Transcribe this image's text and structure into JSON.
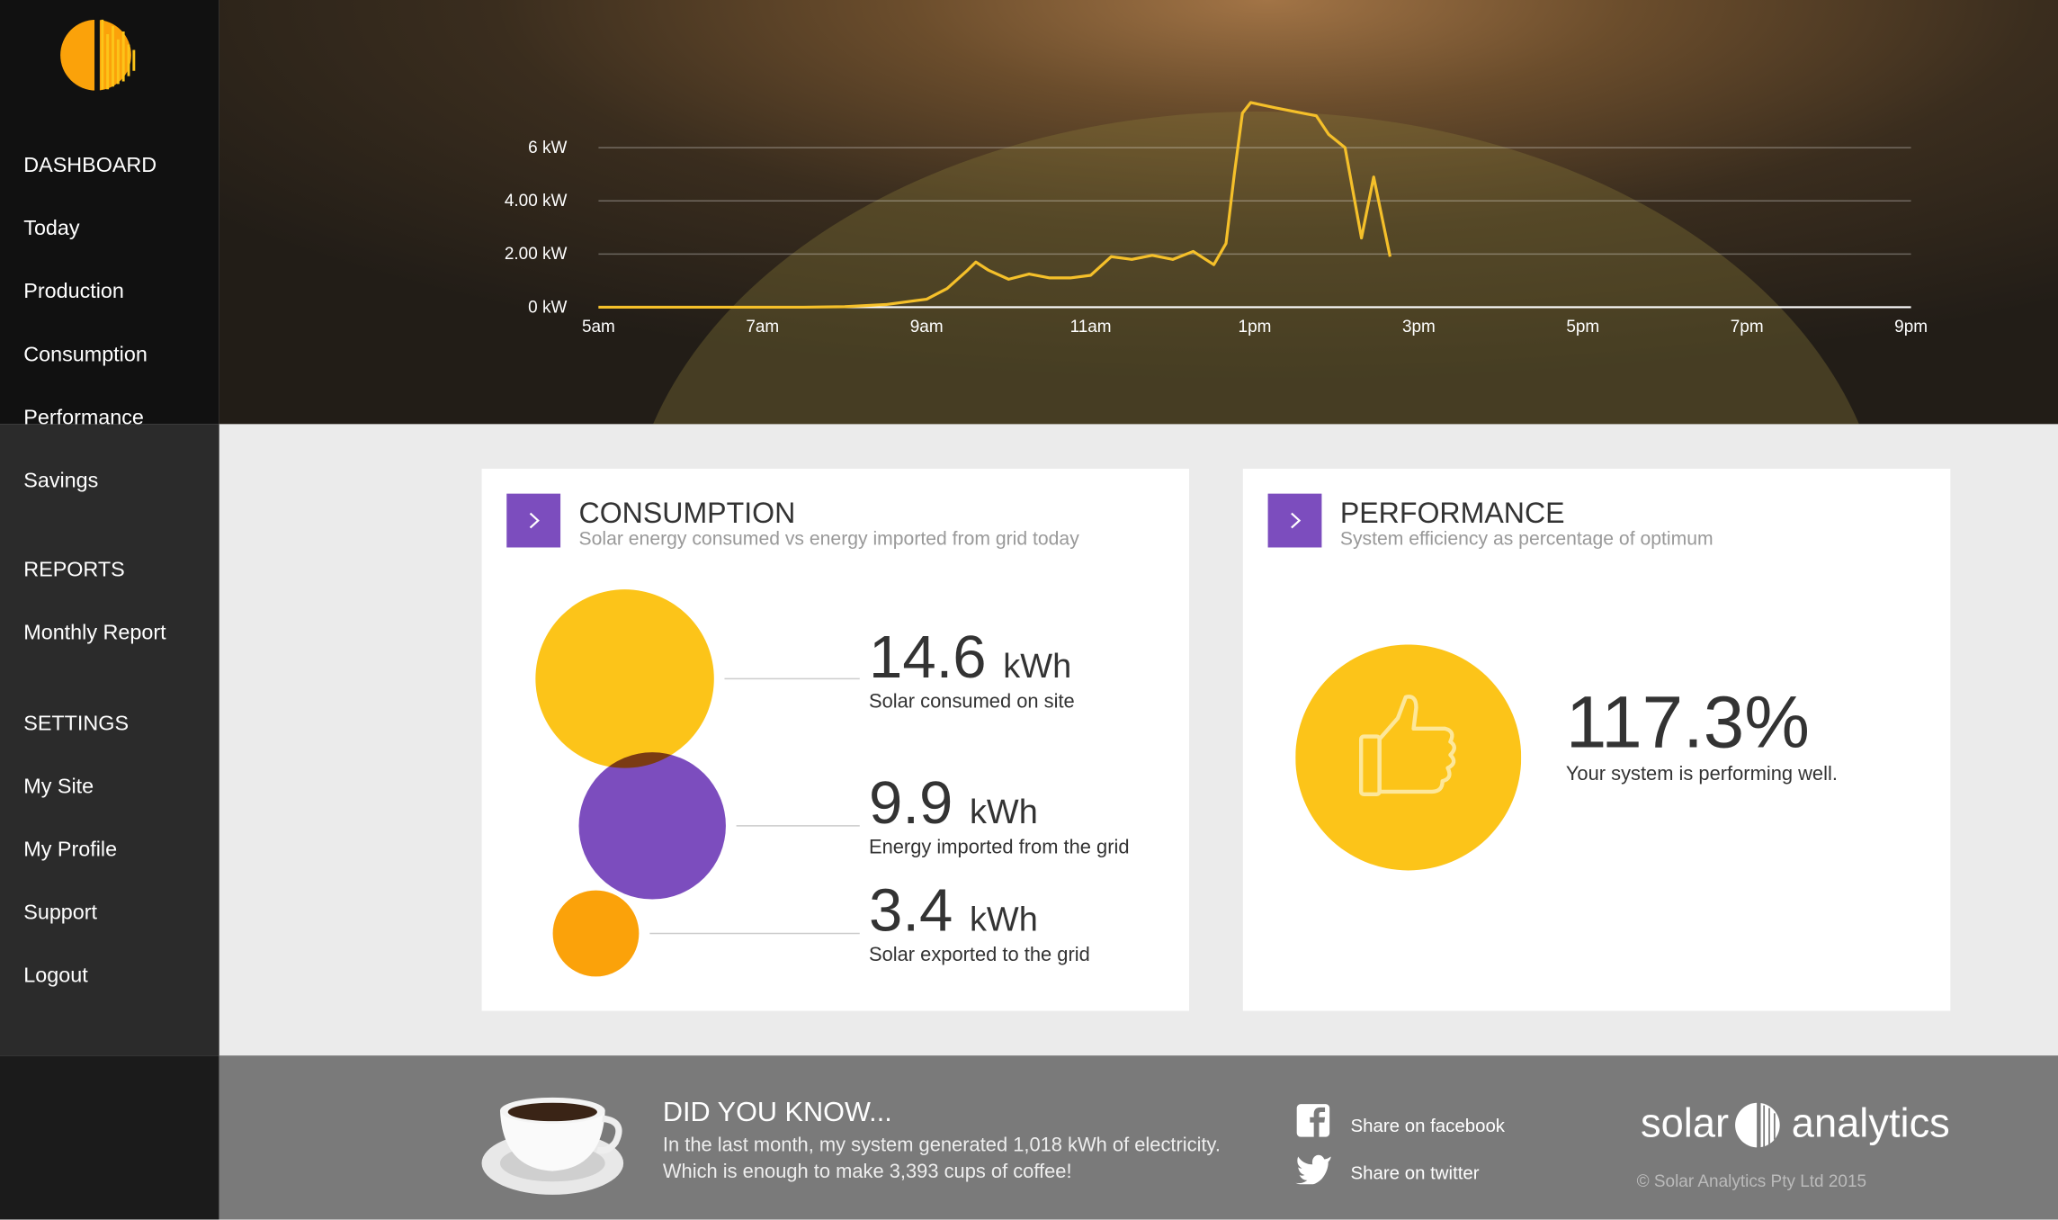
{
  "sidebar": {
    "sections": [
      {
        "heading": "DASHBOARD",
        "items": [
          "Today",
          "Production",
          "Consumption",
          "Performance",
          "Savings"
        ]
      },
      {
        "heading": "REPORTS",
        "items": [
          "Monthly Report"
        ]
      },
      {
        "heading": "SETTINGS",
        "items": [
          "My Site",
          "My Profile",
          "Support",
          "Logout"
        ]
      }
    ]
  },
  "chart_data": {
    "type": "line",
    "color": "#f5c02a",
    "grid": true,
    "x": [
      5,
      7.5,
      8,
      8.5,
      9,
      9.25,
      9.5,
      9.6,
      9.75,
      10,
      10.25,
      10.5,
      10.75,
      11,
      11.25,
      11.5,
      11.75,
      12,
      12.25,
      12.5,
      12.65,
      12.75,
      12.85,
      12.95,
      13.25,
      13.5,
      13.75,
      13.9,
      14.1,
      14.3,
      14.45,
      14.65
    ],
    "values": [
      0,
      0,
      0.02,
      0.1,
      0.3,
      0.7,
      1.4,
      1.7,
      1.4,
      1.05,
      1.25,
      1.1,
      1.1,
      1.2,
      1.9,
      1.8,
      1.95,
      1.8,
      2.1,
      1.6,
      2.4,
      5.0,
      7.3,
      7.7,
      7.5,
      7.35,
      7.2,
      6.5,
      6.0,
      2.6,
      4.9,
      1.9
    ],
    "xlim": [
      5,
      21
    ],
    "xticks": [
      {
        "value": 5,
        "label": "5am"
      },
      {
        "value": 7,
        "label": "7am"
      },
      {
        "value": 9,
        "label": "9am"
      },
      {
        "value": 11,
        "label": "11am"
      },
      {
        "value": 13,
        "label": "1pm"
      },
      {
        "value": 15,
        "label": "3pm"
      },
      {
        "value": 17,
        "label": "5pm"
      },
      {
        "value": 19,
        "label": "7pm"
      },
      {
        "value": 21,
        "label": "9pm"
      }
    ],
    "ylim": [
      0,
      8
    ],
    "yticks": [
      {
        "value": 0,
        "label": "0 kW"
      },
      {
        "value": 2,
        "label": "2.00 kW"
      },
      {
        "value": 4,
        "label": "4.00 kW"
      },
      {
        "value": 6,
        "label": "6 kW"
      }
    ]
  },
  "consumption": {
    "title": "CONSUMPTION",
    "subtitle": "Solar energy consumed vs energy imported from grid today",
    "items": [
      {
        "value": 14.6,
        "unit": "kWh",
        "label": "Solar consumed on site",
        "color": "#fcc419"
      },
      {
        "value": 9.9,
        "unit": "kWh",
        "label": "Energy imported from the grid",
        "color": "#7c4dbe"
      },
      {
        "value": 3.4,
        "unit": "kWh",
        "label": "Solar exported to the grid",
        "color": "#fba20a"
      }
    ]
  },
  "performance": {
    "title": "PERFORMANCE",
    "subtitle": "System efficiency as percentage of optimum",
    "value": "117.3%",
    "message": "Your system is performing well."
  },
  "footer": {
    "heading": "DID YOU KNOW...",
    "text1": "In the last month, my system generated 1,018 kWh of electricity.",
    "text2": "Which is enough to make 3,393 cups of coffee!",
    "facebook": "Share on facebook",
    "twitter": "Share on twitter",
    "brand1": "solar",
    "brand2": "analytics",
    "copyright": "© Solar Analytics Pty Ltd 2015"
  }
}
